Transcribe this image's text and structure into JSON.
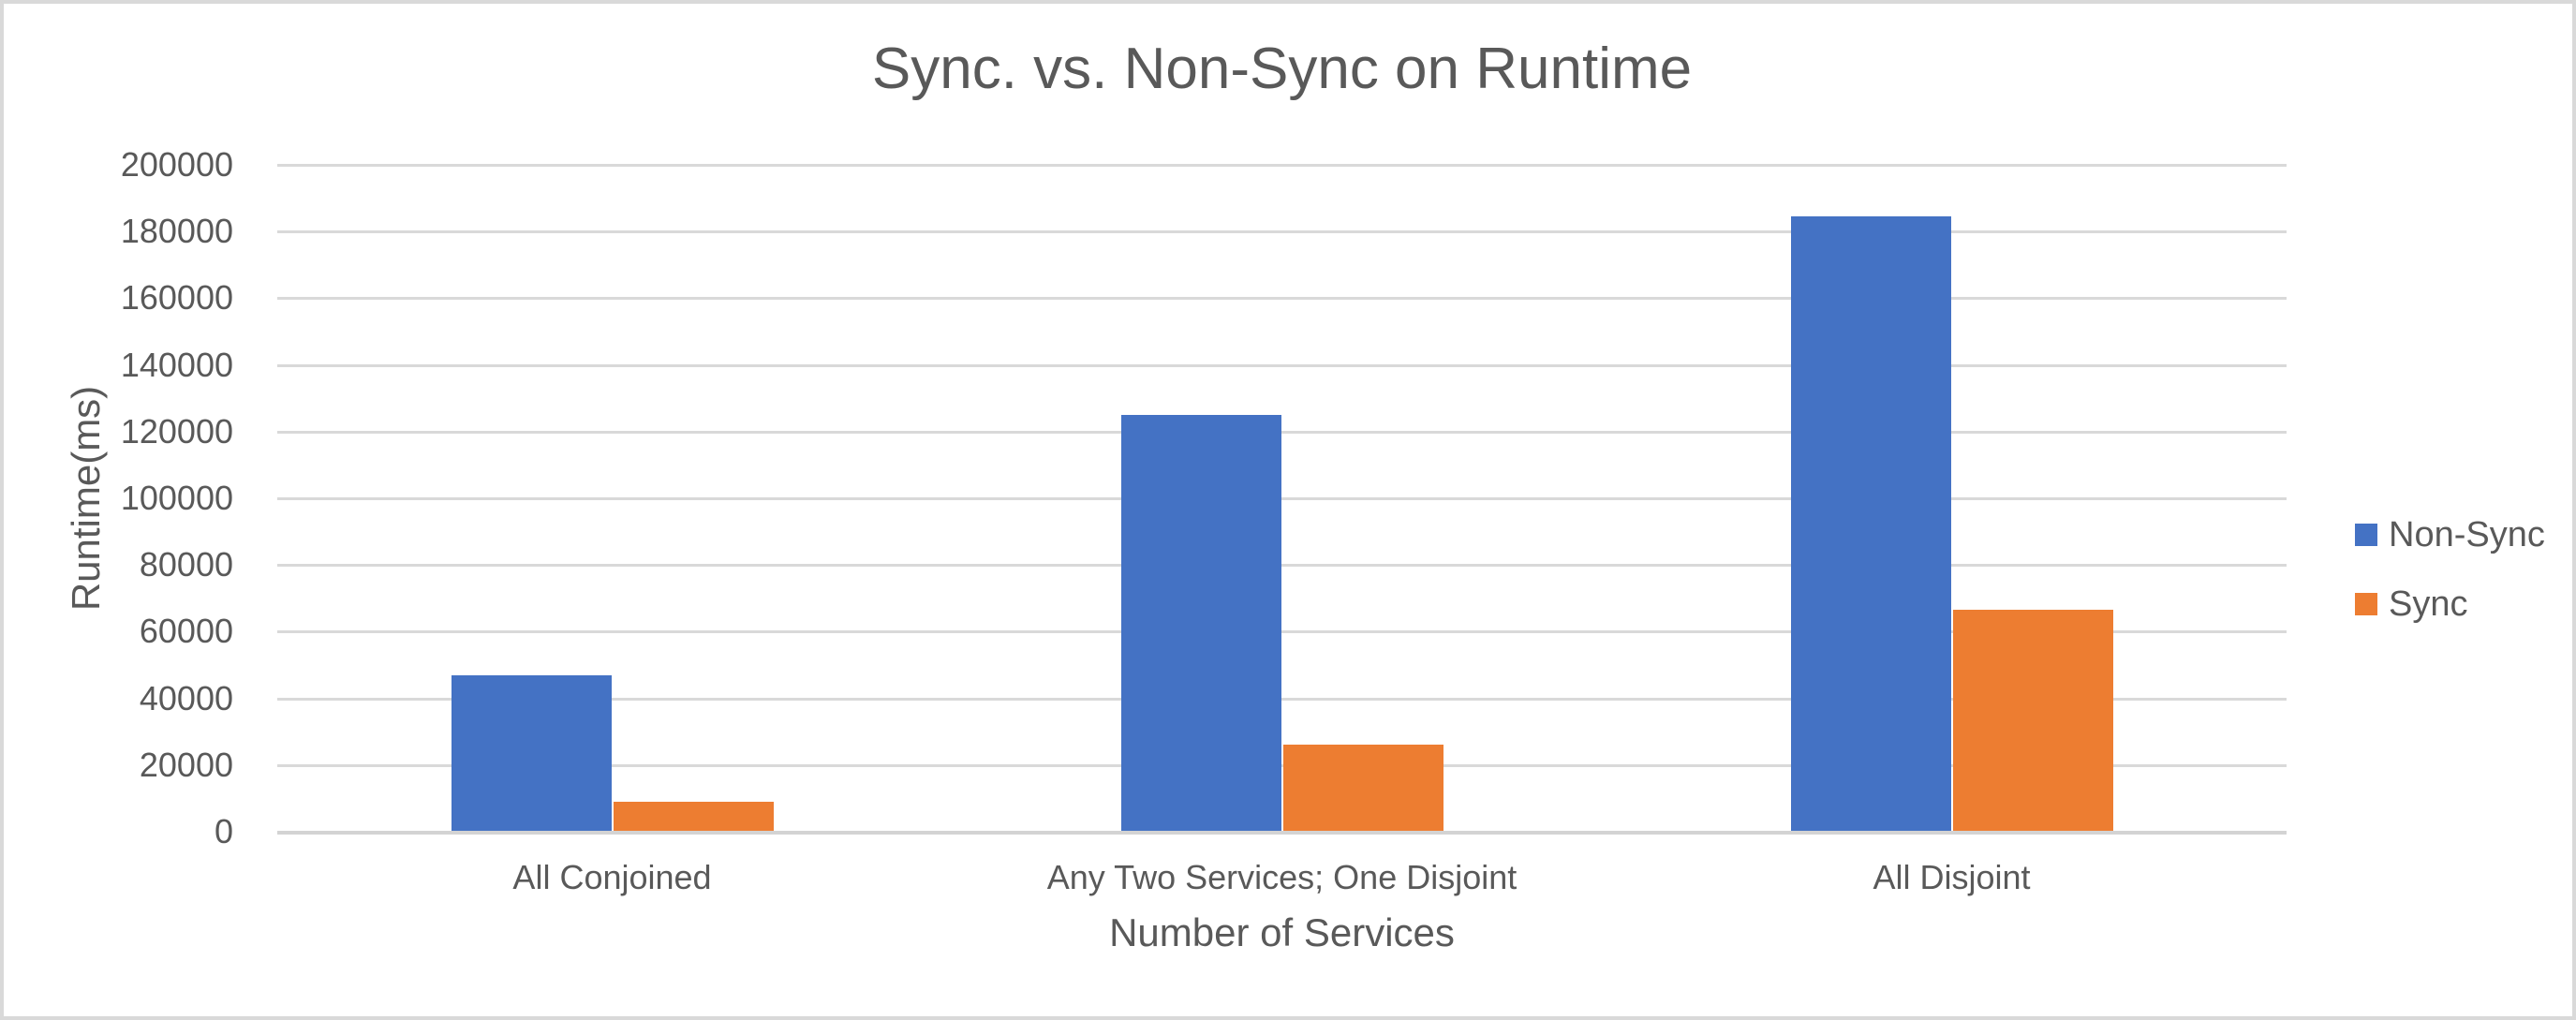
{
  "frame": {
    "background": "#ffffff",
    "border_color": "#d9d9d9"
  },
  "chart_data": {
    "type": "bar",
    "title": "Sync. vs. Non-Sync on Runtime",
    "xlabel": "Number of Services",
    "ylabel": "Runtime(ms)",
    "categories": [
      "All Conjoined",
      "Any Two Services; One Disjoint",
      "All Disjoint"
    ],
    "series": [
      {
        "name": "Non-Sync",
        "color": "#4472C4",
        "values": [
          47000,
          125000,
          184500
        ]
      },
      {
        "name": "Sync",
        "color": "#ED7D31",
        "values": [
          9000,
          26000,
          66500
        ]
      }
    ],
    "ylim": [
      0,
      200000
    ],
    "ytick_step": 20000,
    "ytick_labels": [
      "0",
      "20000",
      "40000",
      "60000",
      "80000",
      "100000",
      "120000",
      "140000",
      "160000",
      "180000",
      "200000"
    ],
    "grid": true,
    "legend_position": "right",
    "styles": {
      "gridline_color": "#d9d9d9",
      "baseline_color": "#d3d3d3",
      "text_color": "#595959"
    }
  }
}
